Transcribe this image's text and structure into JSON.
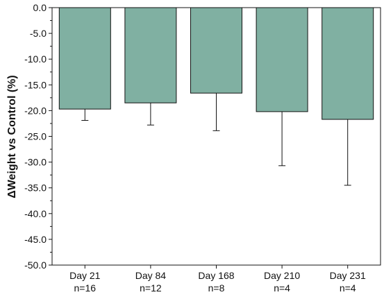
{
  "chart_data": {
    "type": "bar",
    "ylabel": "ΔWeight vs Control (%)",
    "ylim": [
      -50,
      0
    ],
    "yticks": [
      0,
      -5,
      -10,
      -15,
      -20,
      -25,
      -30,
      -35,
      -40,
      -45,
      -50
    ],
    "ytick_labels": [
      "0.0",
      "-5.0",
      "-10.0",
      "-15.0",
      "-20.0",
      "-25.0",
      "-30.0",
      "-35.0",
      "-40.0",
      "-45.0",
      "-50.0"
    ],
    "categories": [
      {
        "line1": "Day 21",
        "line2": "n=16"
      },
      {
        "line1": "Day 84",
        "line2": "n=12"
      },
      {
        "line1": "Day 168",
        "line2": "n=8"
      },
      {
        "line1": "Day 210",
        "line2": "n=4"
      },
      {
        "line1": "Day 231",
        "line2": "n=4"
      }
    ],
    "values": [
      -19.7,
      -18.5,
      -16.6,
      -20.2,
      -21.7
    ],
    "error_lower": [
      -21.9,
      -22.8,
      -23.9,
      -30.7,
      -34.5
    ],
    "bar_color": "#80b0a2",
    "grid": false
  }
}
